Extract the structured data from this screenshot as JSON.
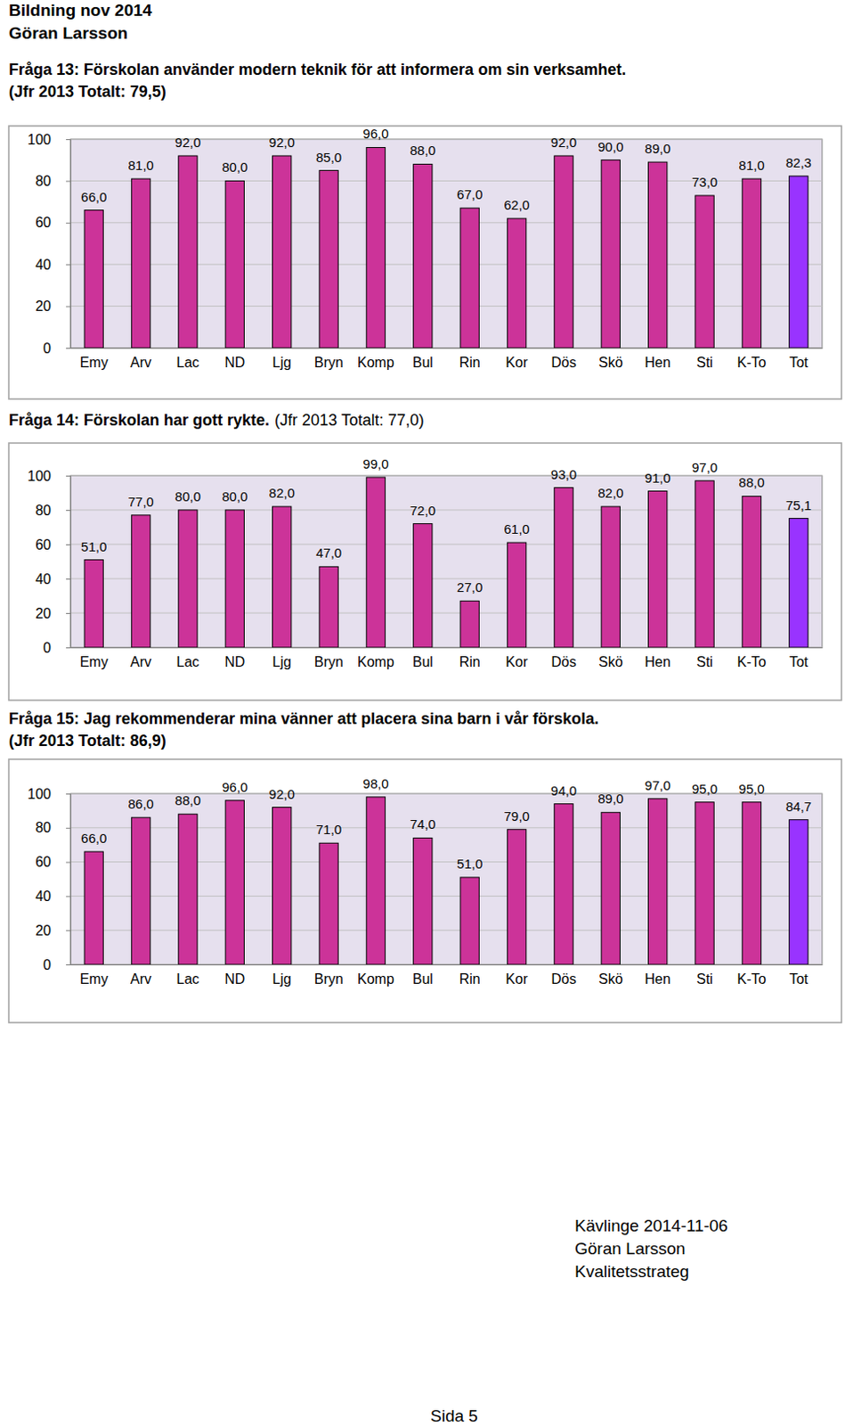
{
  "header": [
    "Bildning nov 2014",
    "Göran Larsson"
  ],
  "chart_data": [
    {
      "type": "bar",
      "title": "Fråga 13: Förskolan använder modern teknik för att informera om sin verksamhet.",
      "subtitle": "(Jfr 2013 Totalt: 79,5)",
      "categories": [
        "Emy",
        "Arv",
        "Lac",
        "ND",
        "Ljg",
        "Bryn",
        "Komp",
        "Bul",
        "Rin",
        "Kor",
        "Dös",
        "Skö",
        "Hen",
        "Sti",
        "K-To",
        "Tot"
      ],
      "values": [
        66,
        81,
        92,
        80,
        92,
        85,
        96,
        88,
        67,
        62,
        92,
        90,
        89,
        73,
        81,
        82.3
      ],
      "value_labels": [
        "66,0",
        "81,0",
        "92,0",
        "80,0",
        "92,0",
        "85,0",
        "96,0",
        "88,0",
        "67,0",
        "62,0",
        "92,0",
        "90,0",
        "89,0",
        "73,0",
        "81,0",
        "82,3"
      ],
      "colors": [
        "#cc3399",
        "#cc3399",
        "#cc3399",
        "#cc3399",
        "#cc3399",
        "#cc3399",
        "#cc3399",
        "#cc3399",
        "#cc3399",
        "#cc3399",
        "#cc3399",
        "#cc3399",
        "#cc3399",
        "#cc3399",
        "#cc3399",
        "#9933ff"
      ],
      "ylim": [
        0,
        100
      ],
      "yticks": [
        0,
        20,
        40,
        60,
        80,
        100
      ],
      "grid": true,
      "data_labels": true
    },
    {
      "type": "bar",
      "title": "Fråga 14: Förskolan har gott rykte.",
      "subtitle": "(Jfr 2013 Totalt: 77,0)",
      "categories": [
        "Emy",
        "Arv",
        "Lac",
        "ND",
        "Ljg",
        "Bryn",
        "Komp",
        "Bul",
        "Rin",
        "Kor",
        "Dös",
        "Skö",
        "Hen",
        "Sti",
        "K-To",
        "Tot"
      ],
      "values": [
        51,
        77,
        80,
        80,
        82,
        47,
        99,
        72,
        27,
        61,
        93,
        82,
        91,
        97,
        88,
        75.1
      ],
      "value_labels": [
        "51,0",
        "77,0",
        "80,0",
        "80,0",
        "82,0",
        "47,0",
        "99,0",
        "72,0",
        "27,0",
        "61,0",
        "93,0",
        "82,0",
        "91,0",
        "97,0",
        "88,0",
        "75,1"
      ],
      "colors": [
        "#cc3399",
        "#cc3399",
        "#cc3399",
        "#cc3399",
        "#cc3399",
        "#cc3399",
        "#cc3399",
        "#cc3399",
        "#cc3399",
        "#cc3399",
        "#cc3399",
        "#cc3399",
        "#cc3399",
        "#cc3399",
        "#cc3399",
        "#9933ff"
      ],
      "ylim": [
        0,
        100
      ],
      "yticks": [
        0,
        20,
        40,
        60,
        80,
        100
      ],
      "grid": true,
      "data_labels": true
    },
    {
      "type": "bar",
      "title": "Fråga 15: Jag rekommenderar mina vänner att placera sina barn i vår förskola.",
      "subtitle": "(Jfr 2013 Totalt: 86,9)",
      "categories": [
        "Emy",
        "Arv",
        "Lac",
        "ND",
        "Ljg",
        "Bryn",
        "Komp",
        "Bul",
        "Rin",
        "Kor",
        "Dös",
        "Skö",
        "Hen",
        "Sti",
        "K-To",
        "Tot"
      ],
      "values": [
        66,
        86,
        88,
        96,
        92,
        71,
        98,
        74,
        51,
        79,
        94,
        89,
        97,
        95,
        95,
        84.7
      ],
      "value_labels": [
        "66,0",
        "86,0",
        "88,0",
        "96,0",
        "92,0",
        "71,0",
        "98,0",
        "74,0",
        "51,0",
        "79,0",
        "94,0",
        "89,0",
        "97,0",
        "95,0",
        "95,0",
        "84,7"
      ],
      "colors": [
        "#cc3399",
        "#cc3399",
        "#cc3399",
        "#cc3399",
        "#cc3399",
        "#cc3399",
        "#cc3399",
        "#cc3399",
        "#cc3399",
        "#cc3399",
        "#cc3399",
        "#cc3399",
        "#cc3399",
        "#cc3399",
        "#cc3399",
        "#9933ff"
      ],
      "ylim": [
        0,
        100
      ],
      "yticks": [
        0,
        20,
        40,
        60,
        80,
        100
      ],
      "grid": true,
      "data_labels": true
    }
  ],
  "footer": [
    "Kävlinge 2014-11-06",
    "Göran Larsson",
    "Kvalitetsstrateg"
  ],
  "page": "Sida 5"
}
